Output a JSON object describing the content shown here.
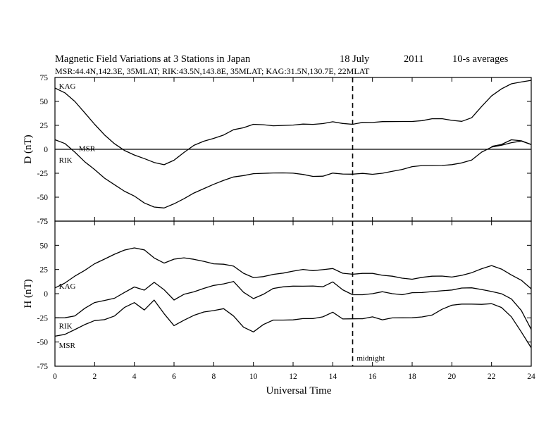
{
  "figure": {
    "title_main": "Magnetic Field Variations at 3 Stations in Japan",
    "title_date": "18 July",
    "title_year": "2011",
    "title_avg": "10-s averages",
    "subtitle": "MSR:44.4N,142.3E, 35MLAT;  RIK:43.5N,143.8E, 35MLAT;  KAG:31.5N,130.7E, 22MLAT",
    "xlabel": "Universal Time",
    "annotation": "midnight"
  },
  "chart_data": [
    {
      "type": "line",
      "ylabel": "D (nT)",
      "ylim": [
        -75,
        75
      ],
      "yticks": [
        75,
        50,
        25,
        0,
        -25,
        -50,
        -75
      ],
      "xlim": [
        0,
        24
      ],
      "xticks": [
        0,
        2,
        4,
        6,
        8,
        10,
        12,
        14,
        16,
        18,
        20,
        22,
        24
      ],
      "zero_line": 0,
      "vline_x": 15,
      "series": [
        {
          "name": "KAG",
          "x": [
            0,
            0.5,
            1,
            1.5,
            2,
            2.5,
            3,
            3.5,
            4,
            4.5,
            5,
            5.5,
            6,
            6.5,
            7,
            7.5,
            8,
            8.5,
            9,
            9.5,
            10,
            10.5,
            11,
            11.5,
            12,
            12.5,
            13,
            13.5,
            14,
            14.5,
            15,
            15.5,
            16,
            16.5,
            17,
            17.5,
            18,
            18.5,
            19,
            19.5,
            20,
            20.5,
            21,
            21.5,
            22,
            22.5,
            23,
            23.5,
            24
          ],
          "y": [
            64,
            58,
            49,
            38,
            27,
            16,
            6,
            -2,
            -7,
            -10,
            -13,
            -15,
            -11,
            -4,
            3,
            8,
            12,
            16,
            21,
            22,
            25,
            25,
            25,
            26,
            26,
            26,
            25,
            26,
            29,
            28,
            27,
            28,
            27,
            28,
            29,
            30,
            30,
            30,
            31,
            31,
            30,
            30,
            34,
            45,
            55,
            62,
            68,
            71,
            72
          ]
        },
        {
          "name": "MSR",
          "x": [
            0,
            0.5,
            1,
            1.5,
            2,
            2.5,
            3,
            3.5,
            4,
            4.5,
            5,
            5.5,
            6,
            6.5,
            7,
            7.5,
            8,
            8.5,
            9,
            9.5,
            10,
            10.5,
            11,
            11.5,
            12,
            12.5,
            13,
            13.5,
            14,
            14.5,
            15,
            15.5,
            16,
            16.5,
            17,
            17.5,
            18,
            18.5,
            19,
            19.5,
            20,
            20.5,
            21,
            21.5,
            22,
            22.5,
            23,
            23.5,
            24
          ],
          "y": [
            10,
            6,
            -2,
            -12,
            -21,
            -31,
            -38,
            -44,
            -48,
            -55,
            -60,
            -62,
            -58,
            -52,
            -45,
            -40,
            -36,
            -33,
            -30,
            -28,
            -25,
            -24,
            -24,
            -25,
            -26,
            -27,
            -28,
            -27,
            -24,
            -26,
            -27,
            -26,
            -26,
            -24,
            -22,
            -21,
            -19,
            -18,
            -17,
            -16,
            -15,
            -14,
            -12,
            -4,
            2,
            5,
            8,
            9,
            5
          ]
        },
        {
          "name": "RIK",
          "x": [
            22,
            22.5,
            23,
            23.5,
            24
          ],
          "y": [
            3,
            6,
            10,
            8,
            5
          ]
        }
      ],
      "labels": [
        {
          "text": "KAG",
          "x": 0.2,
          "y": 66
        },
        {
          "text": "MSR",
          "x": 1.2,
          "y": 1
        },
        {
          "text": "RIK",
          "x": 0.2,
          "y": -11
        }
      ]
    },
    {
      "type": "line",
      "ylabel": "H (nT)",
      "ylim": [
        -75,
        75
      ],
      "yticks": [
        75,
        50,
        25,
        0,
        -25,
        -50,
        -75
      ],
      "xlim": [
        0,
        24
      ],
      "xticks": [
        0,
        2,
        4,
        6,
        8,
        10,
        12,
        14,
        16,
        18,
        20,
        22,
        24
      ],
      "series": [
        {
          "name": "KAG",
          "x": [
            0,
            0.5,
            1,
            1.5,
            2,
            2.5,
            3,
            3.5,
            4,
            4.5,
            5,
            5.5,
            6,
            6.5,
            7,
            7.5,
            8,
            8.5,
            9,
            9.5,
            10,
            10.5,
            11,
            11.5,
            12,
            12.5,
            13,
            13.5,
            14,
            14.5,
            15,
            15.5,
            16,
            16.5,
            17,
            17.5,
            18,
            18.5,
            19,
            19.5,
            20,
            20.5,
            21,
            21.5,
            22,
            22.5,
            23,
            23.5,
            24
          ],
          "y": [
            6,
            10,
            18,
            25,
            32,
            36,
            40,
            44,
            47,
            46,
            38,
            32,
            35,
            36,
            35,
            34,
            32,
            31,
            28,
            20,
            16,
            18,
            21,
            22,
            23,
            24,
            23,
            25,
            27,
            22,
            20,
            20,
            20,
            19,
            19,
            17,
            15,
            16,
            17,
            18,
            18,
            20,
            22,
            25,
            28,
            25,
            20,
            15,
            5
          ]
        },
        {
          "name": "RIK",
          "x": [
            0,
            0.5,
            1,
            1.5,
            2,
            2.5,
            3,
            3.5,
            4,
            4.5,
            5,
            5.5,
            6,
            6.5,
            7,
            7.5,
            8,
            8.5,
            9,
            9.5,
            10,
            10.5,
            11,
            11.5,
            12,
            12.5,
            13,
            13.5,
            14,
            14.5,
            15,
            15.5,
            16,
            16.5,
            17,
            17.5,
            18,
            18.5,
            19,
            19.5,
            20,
            20.5,
            21,
            21.5,
            22,
            22.5,
            23,
            23.5,
            24
          ],
          "y": [
            -25,
            -24,
            -22,
            -15,
            -10,
            -8,
            -5,
            2,
            8,
            4,
            11,
            3,
            -7,
            0,
            3,
            6,
            8,
            9,
            12,
            2,
            -4,
            0,
            5,
            6,
            7,
            8,
            9,
            8,
            12,
            3,
            -2,
            -1,
            1,
            3,
            0,
            -2,
            0,
            1,
            3,
            4,
            4,
            5,
            5,
            4,
            3,
            1,
            -5,
            -18,
            -37
          ]
        },
        {
          "name": "MSR",
          "x": [
            0,
            0.5,
            1,
            1.5,
            2,
            2.5,
            3,
            3.5,
            4,
            4.5,
            5,
            5.5,
            6,
            6.5,
            7,
            7.5,
            8,
            8.5,
            9,
            9.5,
            10,
            10.5,
            11,
            11.5,
            12,
            12.5,
            13,
            13.5,
            14,
            14.5,
            15,
            15.5,
            16,
            16.5,
            17,
            17.5,
            18,
            18.5,
            19,
            19.5,
            20,
            20.5,
            21,
            21.5,
            22,
            22.5,
            23,
            23.5,
            24
          ],
          "y": [
            -44,
            -42,
            -38,
            -33,
            -28,
            -26,
            -22,
            -14,
            -10,
            -18,
            -7,
            -20,
            -32,
            -27,
            -23,
            -20,
            -18,
            -15,
            -22,
            -34,
            -40,
            -33,
            -28,
            -27,
            -26,
            -25,
            -26,
            -25,
            -20,
            -26,
            -25,
            -25,
            -24,
            -28,
            -26,
            -25,
            -24,
            -23,
            -22,
            -17,
            -13,
            -11,
            -10,
            -10,
            -10,
            -15,
            -25,
            -40,
            -56
          ]
        }
      ],
      "labels": [
        {
          "text": "KAG",
          "x": 0.2,
          "y": 8
        },
        {
          "text": "RIK",
          "x": 0.2,
          "y": -33
        },
        {
          "text": "MSR",
          "x": 0.2,
          "y": -53
        }
      ],
      "annotation_pos": {
        "x": 15.1,
        "y": -69
      }
    }
  ]
}
